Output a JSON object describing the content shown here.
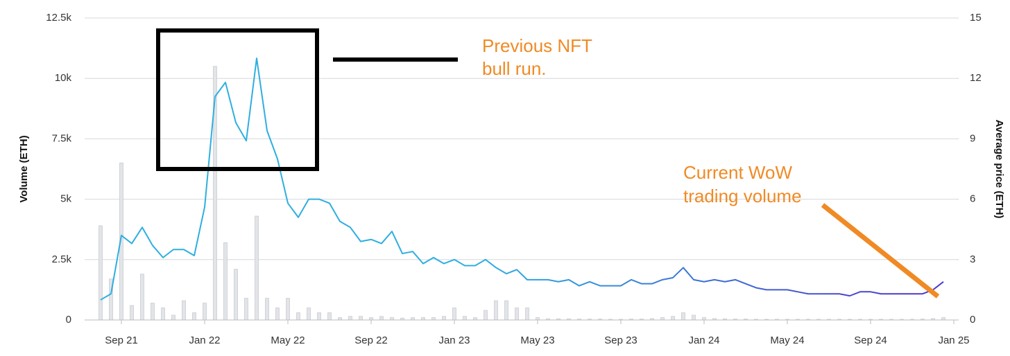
{
  "chart_data": {
    "type": "bar-line",
    "categories": [
      null,
      null,
      "Sep 21",
      null,
      null,
      null,
      null,
      null,
      null,
      null,
      "Jan 22",
      null,
      null,
      null,
      null,
      null,
      null,
      null,
      "May 22",
      null,
      null,
      null,
      null,
      null,
      null,
      null,
      "Sep 22",
      null,
      null,
      null,
      null,
      null,
      null,
      null,
      "Jan 23",
      null,
      null,
      null,
      null,
      null,
      null,
      null,
      "May 23",
      null,
      null,
      null,
      null,
      null,
      null,
      null,
      "Sep 23",
      null,
      null,
      null,
      null,
      null,
      null,
      null,
      "Jan 24",
      null,
      null,
      null,
      null,
      null,
      null,
      null,
      "May 24",
      null,
      null,
      null,
      null,
      null,
      null,
      null,
      "Sep 24",
      null,
      null,
      null,
      null,
      null,
      null,
      null,
      "Jan 25"
    ],
    "series": [
      {
        "name": "Volume (ETH)",
        "type": "bar",
        "axis": "y",
        "color": "#e2e4e8",
        "values": [
          3900,
          1700,
          6500,
          600,
          1900,
          700,
          500,
          200,
          800,
          300,
          700,
          10500,
          3200,
          2100,
          900,
          4300,
          900,
          500,
          900,
          300,
          500,
          300,
          300,
          100,
          150,
          150,
          100,
          150,
          100,
          80,
          100,
          100,
          100,
          150,
          500,
          150,
          100,
          400,
          800,
          800,
          500,
          500,
          100,
          50,
          50,
          50,
          40,
          40,
          40,
          30,
          30,
          40,
          40,
          60,
          100,
          150,
          300,
          200,
          100,
          60,
          50,
          40,
          40,
          30,
          30,
          30,
          30,
          30,
          30,
          30,
          30,
          30,
          30,
          30,
          30,
          30,
          30,
          30,
          30,
          40,
          60,
          100,
          null
        ]
      },
      {
        "name": "Average price (ETH)",
        "type": "line",
        "axis": "y2",
        "color": [
          "#2eaee0",
          "#4b3acb"
        ],
        "values": [
          1.0,
          1.3,
          4.2,
          3.8,
          4.6,
          3.7,
          3.1,
          3.5,
          3.5,
          3.2,
          5.6,
          11.1,
          11.8,
          9.8,
          8.9,
          13.0,
          9.4,
          8.0,
          5.8,
          5.1,
          6.0,
          6.0,
          5.8,
          4.9,
          4.6,
          3.9,
          4.0,
          3.8,
          4.4,
          3.3,
          3.4,
          2.8,
          3.1,
          2.8,
          3.0,
          2.7,
          2.7,
          3.0,
          2.6,
          2.3,
          2.5,
          2.0,
          2.0,
          2.0,
          1.9,
          2.0,
          1.7,
          1.9,
          1.7,
          1.7,
          1.7,
          2.0,
          1.8,
          1.8,
          2.0,
          2.1,
          2.6,
          2.0,
          1.9,
          2.0,
          1.9,
          2.0,
          1.8,
          1.6,
          1.5,
          1.5,
          1.5,
          1.4,
          1.3,
          1.3,
          1.3,
          1.3,
          1.2,
          1.4,
          1.4,
          1.3,
          1.3,
          1.3,
          1.3,
          1.3,
          1.5,
          1.9,
          null
        ]
      }
    ],
    "ylabel": "Volume (ETH)",
    "y2label": "Average price (ETH)",
    "ylim": [
      0,
      12500
    ],
    "yticks": [
      0,
      {
        "value": 2500,
        "label": "2.5k"
      },
      {
        "value": 5000,
        "label": "5k"
      },
      {
        "value": 7500,
        "label": "7.5k"
      },
      {
        "value": 10000,
        "label": "10k"
      },
      {
        "value": 12500,
        "label": "12.5k"
      }
    ],
    "y2lim": [
      0,
      15
    ],
    "y2ticks": [
      0,
      3,
      6,
      9,
      12,
      15
    ],
    "grid": true,
    "annotations": [
      "Previous NFT",
      "bull run.",
      "Current WoW",
      "trading volume"
    ]
  }
}
